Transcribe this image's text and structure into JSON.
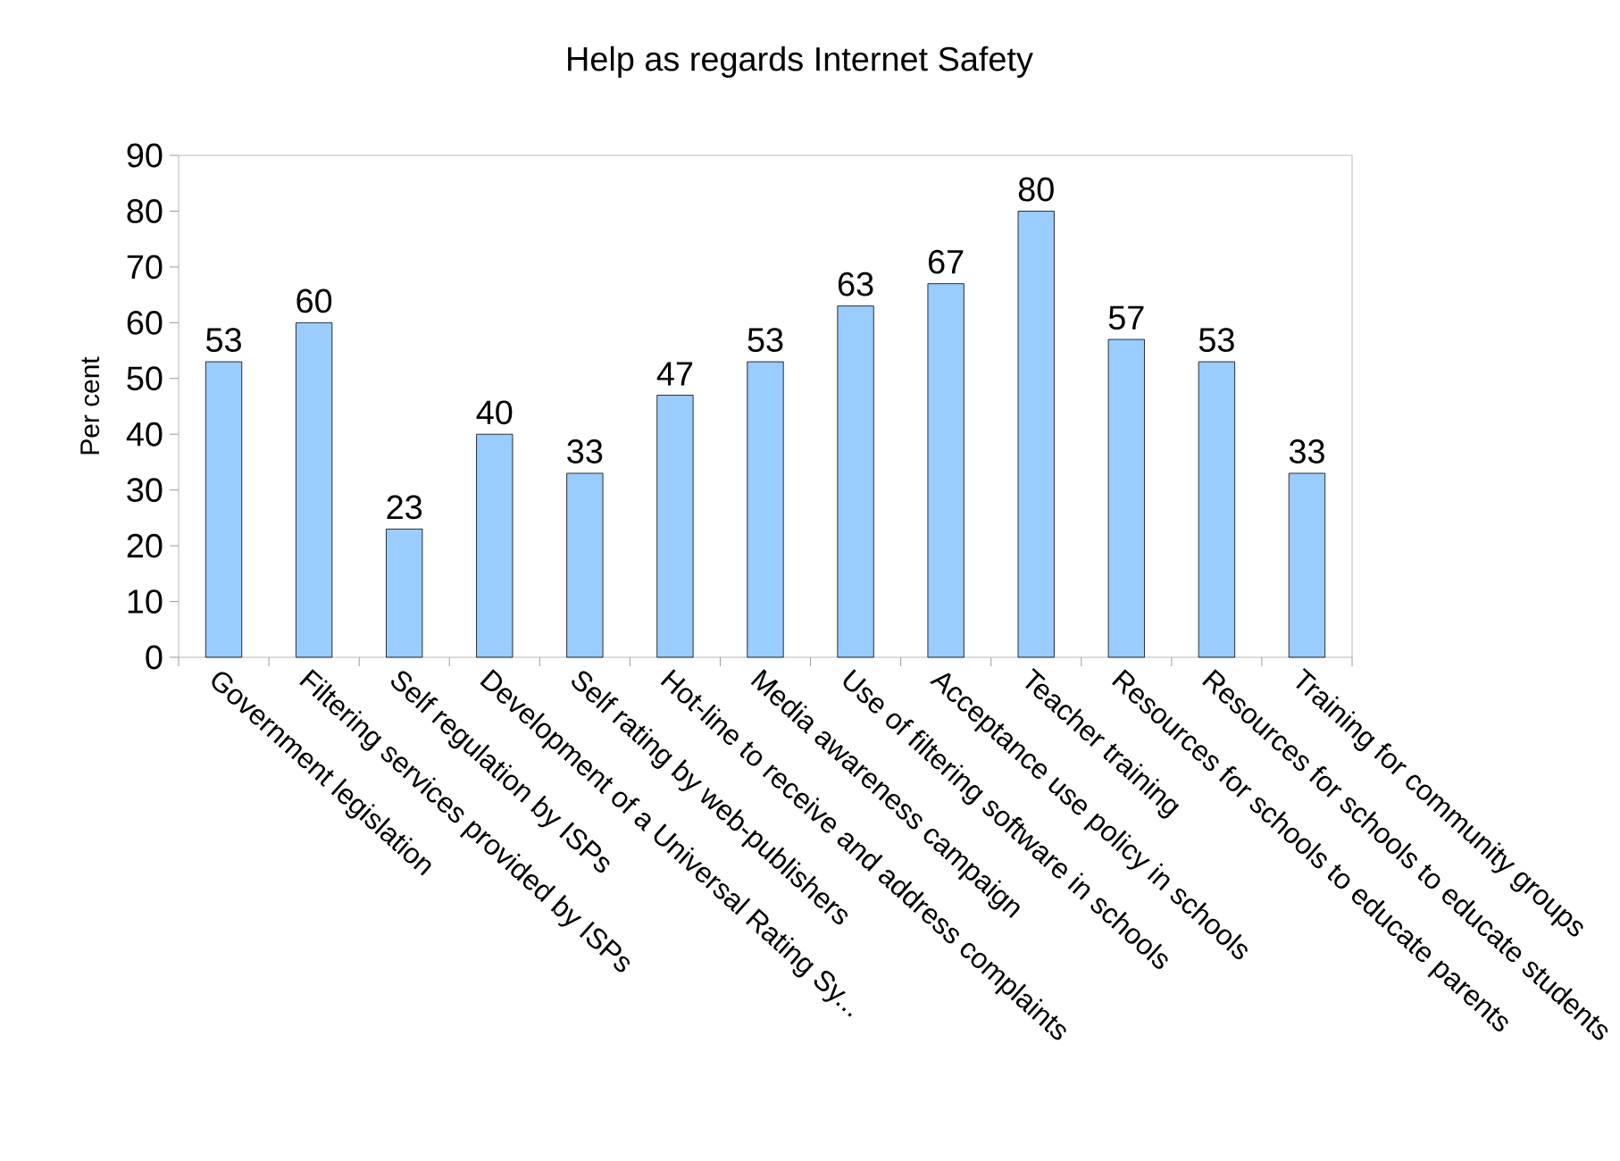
{
  "chart_data": {
    "type": "bar",
    "title": "Help as regards Internet Safety",
    "ylabel": "Per cent",
    "categories": [
      "Government legislation",
      "Filtering services provided by ISPs",
      "Self regulation by ISPs",
      "Development of a Universal Rating Sy...",
      "Self rating by web-publishers",
      "Hot-line to receive and address complaints",
      "Media awareness campaign",
      "Use of filtering software in schools",
      "Acceptance use policy in schools",
      "Teacher training",
      "Resources for schools to educate parents",
      "Resources for schools to educate students",
      "Training for community groups"
    ],
    "values": [
      53,
      60,
      23,
      40,
      33,
      47,
      53,
      63,
      67,
      80,
      57,
      53,
      33
    ],
    "color": "#99ccff",
    "ylim": [
      0,
      90
    ],
    "yticks": [
      0,
      10,
      20,
      30,
      40,
      50,
      60,
      70,
      80,
      90
    ],
    "data_labels": true,
    "grid": false
  }
}
